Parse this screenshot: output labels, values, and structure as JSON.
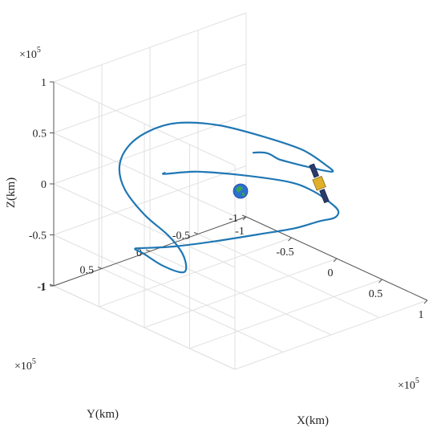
{
  "chart_data": {
    "type": "line-3d",
    "title": "",
    "axes": {
      "x": {
        "label": "X(km)",
        "range": [
          -1,
          1
        ],
        "ticks": [
          "-1",
          "-0.5",
          "0",
          "0.5",
          "1"
        ],
        "multiplier": "×10",
        "multiplier_exp": "5"
      },
      "y": {
        "label": "Y(km)",
        "range": [
          -1,
          1
        ],
        "ticks": [
          "-1",
          "-0.5",
          "0",
          "0.5",
          "1"
        ],
        "multiplier": "×10",
        "multiplier_exp": "5"
      },
      "z": {
        "label": "Z(km)",
        "range": [
          -1,
          1
        ],
        "ticks": [
          "-1",
          "-0.5",
          "0",
          "0.5",
          "1"
        ],
        "multiplier": "×10",
        "multiplier_exp": "5"
      }
    },
    "grid": true,
    "box": "three back panes",
    "colors": {
      "trajectory": "#1f77b4",
      "grid": "#e0e0e0",
      "axis": "#555555",
      "earth": "#2a6fd1",
      "land": "#3aa64a"
    },
    "series": [
      {
        "type": "line",
        "note": "orbit trajectory in units of 1e5 km",
        "points": [
          [
            -0.2,
            0.6,
            0.3
          ],
          [
            0.05,
            0.5,
            0.38
          ],
          [
            0.35,
            0.3,
            0.4
          ],
          [
            0.6,
            0.05,
            0.35
          ],
          [
            0.7,
            -0.1,
            0.25
          ],
          [
            0.72,
            -0.25,
            0.1
          ],
          [
            0.6,
            -0.45,
            -0.1
          ],
          [
            0.4,
            -0.6,
            -0.3
          ],
          [
            0.1,
            -0.72,
            -0.5
          ],
          [
            -0.2,
            -0.75,
            -0.7
          ],
          [
            -0.5,
            -0.65,
            -0.85
          ],
          [
            -0.75,
            -0.45,
            -0.95
          ],
          [
            -0.95,
            -0.2,
            -1.0
          ],
          [
            -1.0,
            0.05,
            -0.95
          ],
          [
            -0.9,
            0.25,
            -0.85
          ],
          [
            -0.7,
            0.35,
            -0.78
          ],
          [
            -0.55,
            0.3,
            -0.85
          ],
          [
            -0.5,
            0.15,
            -0.95
          ],
          [
            -0.6,
            0.0,
            -1.0
          ],
          [
            -0.75,
            -0.1,
            -0.95
          ],
          [
            -0.85,
            -0.05,
            -0.8
          ],
          [
            -0.9,
            0.15,
            -0.55
          ],
          [
            -0.85,
            0.4,
            -0.2
          ],
          [
            -0.7,
            0.6,
            0.15
          ],
          [
            -0.45,
            0.75,
            0.5
          ],
          [
            -0.15,
            0.82,
            0.8
          ],
          [
            0.15,
            0.8,
            1.0
          ],
          [
            0.45,
            0.65,
            1.05
          ],
          [
            0.7,
            0.4,
            0.95
          ],
          [
            0.85,
            0.15,
            0.8
          ],
          [
            0.9,
            -0.05,
            0.6
          ],
          [
            0.8,
            -0.2,
            0.45
          ],
          [
            0.6,
            -0.2,
            0.4
          ],
          [
            0.4,
            -0.05,
            0.45
          ],
          [
            0.3,
            0.15,
            0.55
          ]
        ]
      }
    ],
    "markers": [
      {
        "name": "Earth",
        "x": 0,
        "y": 0,
        "z": 0
      },
      {
        "name": "satellite",
        "x": 0.55,
        "y": -0.3,
        "z": 0.2
      }
    ]
  }
}
